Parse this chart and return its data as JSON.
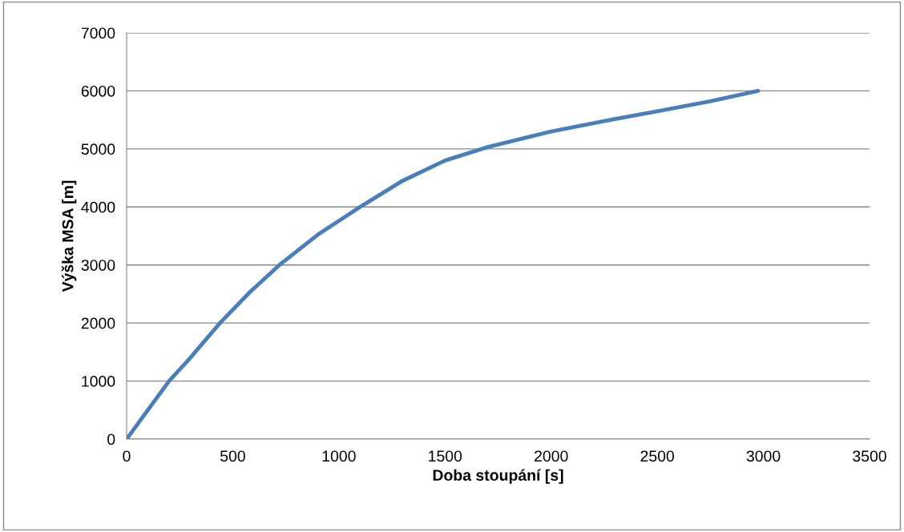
{
  "chart_data": {
    "type": "line",
    "xlabel": "Doba stoupání [s]",
    "ylabel": "Výška MSA [m]",
    "x": [
      0,
      100,
      200,
      300,
      440,
      580,
      720,
      900,
      1100,
      1300,
      1500,
      1700,
      2000,
      2250,
      2500,
      2750,
      2975
    ],
    "series": [
      {
        "color": "#4a7ebb",
        "values": [
          0,
          500,
          1000,
          1400,
          2000,
          2530,
          3000,
          3520,
          4000,
          4450,
          4800,
          5030,
          5300,
          5480,
          5650,
          5820,
          6000
        ]
      }
    ],
    "xlim": [
      0,
      3500
    ],
    "xticks": [
      0,
      500,
      1000,
      1500,
      2000,
      2500,
      3000,
      3500
    ],
    "ylim": [
      0,
      7000
    ],
    "yticks": [
      0,
      1000,
      2000,
      3000,
      4000,
      5000,
      6000,
      7000
    ],
    "grid": "y",
    "legend": false,
    "marker": "none",
    "line_style": "solid"
  }
}
